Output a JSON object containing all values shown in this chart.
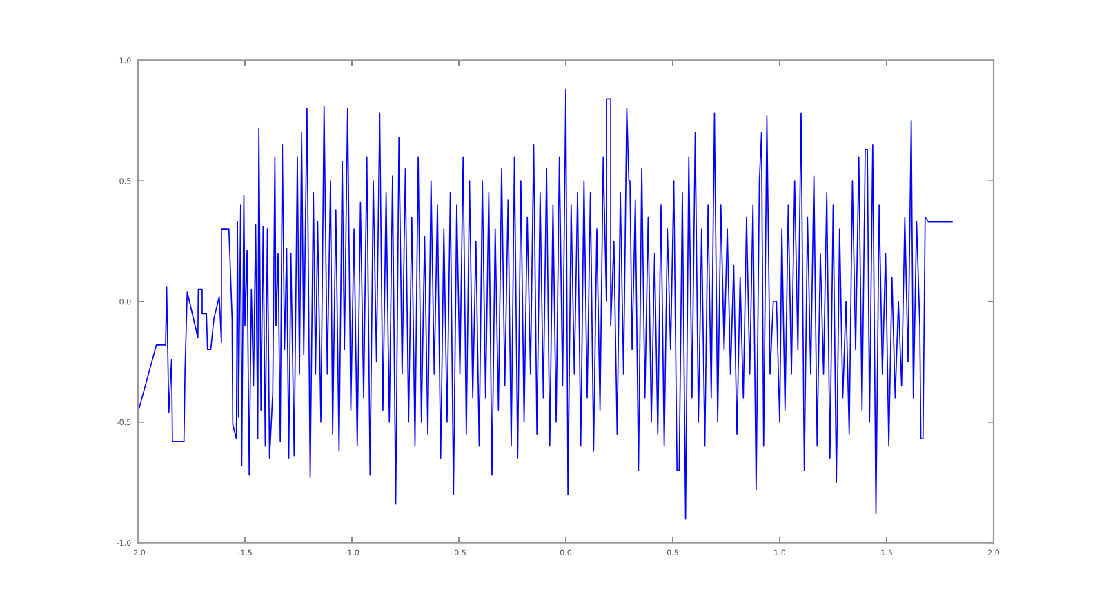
{
  "chart_data": {
    "type": "line",
    "xlim": [
      -2.0,
      2.0
    ],
    "ylim": [
      -1.0,
      1.0
    ],
    "xticks": [
      {
        "value": -2.0,
        "label": "-2.0"
      },
      {
        "value": -1.5,
        "label": "-1.5"
      },
      {
        "value": -1.0,
        "label": "-1.0"
      },
      {
        "value": -0.5,
        "label": "-0.5"
      },
      {
        "value": 0.0,
        "label": "0.0"
      },
      {
        "value": 0.5,
        "label": "0.5"
      },
      {
        "value": 1.0,
        "label": "1.0"
      },
      {
        "value": 1.5,
        "label": "1.5"
      },
      {
        "value": 2.0,
        "label": "2.0"
      }
    ],
    "yticks": [
      {
        "value": -1.0,
        "label": "-1.0"
      },
      {
        "value": -0.5,
        "label": "-0.5"
      },
      {
        "value": 0.0,
        "label": "0.0"
      },
      {
        "value": 0.5,
        "label": "0.5"
      },
      {
        "value": 1.0,
        "label": "1.0"
      }
    ],
    "grid": false,
    "legend": false,
    "marker": "none",
    "line_style": "solid",
    "series": [
      {
        "color": "#0000ff",
        "x": [
          -2.0,
          -1.914,
          -1.871,
          -1.866,
          -1.856,
          -1.843,
          -1.839,
          -1.785,
          -1.78,
          -1.77,
          -1.72,
          -1.718,
          -1.7,
          -1.7,
          -1.68,
          -1.675,
          -1.66,
          -1.645,
          -1.62,
          -1.61,
          -1.61,
          -1.575,
          -1.56,
          -1.557,
          -1.54,
          -1.535,
          -1.53,
          -1.52,
          -1.515,
          -1.505,
          -1.5,
          -1.49,
          -1.48,
          -1.47,
          -1.46,
          -1.45,
          -1.44,
          -1.435,
          -1.425,
          -1.415,
          -1.405,
          -1.395,
          -1.385,
          -1.37,
          -1.36,
          -1.355,
          -1.345,
          -1.335,
          -1.325,
          -1.315,
          -1.305,
          -1.295,
          -1.285,
          -1.27,
          -1.255,
          -1.245,
          -1.235,
          -1.225,
          -1.21,
          -1.195,
          -1.18,
          -1.17,
          -1.16,
          -1.145,
          -1.13,
          -1.115,
          -1.1,
          -1.09,
          -1.075,
          -1.06,
          -1.045,
          -1.035,
          -1.02,
          -1.005,
          -0.99,
          -0.975,
          -0.96,
          -0.945,
          -0.93,
          -0.915,
          -0.9,
          -0.885,
          -0.87,
          -0.855,
          -0.84,
          -0.825,
          -0.81,
          -0.795,
          -0.78,
          -0.765,
          -0.75,
          -0.735,
          -0.72,
          -0.705,
          -0.69,
          -0.675,
          -0.66,
          -0.645,
          -0.63,
          -0.615,
          -0.6,
          -0.585,
          -0.57,
          -0.555,
          -0.54,
          -0.525,
          -0.51,
          -0.495,
          -0.48,
          -0.465,
          -0.45,
          -0.435,
          -0.42,
          -0.405,
          -0.39,
          -0.375,
          -0.36,
          -0.345,
          -0.33,
          -0.315,
          -0.3,
          -0.285,
          -0.27,
          -0.255,
          -0.24,
          -0.225,
          -0.21,
          -0.195,
          -0.18,
          -0.165,
          -0.15,
          -0.135,
          -0.12,
          -0.105,
          -0.09,
          -0.075,
          -0.06,
          -0.045,
          -0.03,
          -0.015,
          0.0,
          0.01,
          0.025,
          0.04,
          0.055,
          0.07,
          0.085,
          0.1,
          0.115,
          0.13,
          0.145,
          0.16,
          0.175,
          0.19,
          0.19,
          0.21,
          0.21,
          0.225,
          0.24,
          0.255,
          0.27,
          0.285,
          0.295,
          0.3,
          0.31,
          0.325,
          0.34,
          0.355,
          0.37,
          0.385,
          0.4,
          0.415,
          0.43,
          0.445,
          0.46,
          0.475,
          0.49,
          0.505,
          0.52,
          0.53,
          0.545,
          0.56,
          0.575,
          0.59,
          0.605,
          0.62,
          0.635,
          0.65,
          0.665,
          0.68,
          0.695,
          0.71,
          0.725,
          0.74,
          0.755,
          0.77,
          0.785,
          0.8,
          0.815,
          0.83,
          0.845,
          0.86,
          0.875,
          0.89,
          0.905,
          0.915,
          0.925,
          0.94,
          0.955,
          0.97,
          0.985,
          1.0,
          1.01,
          1.025,
          1.04,
          1.055,
          1.07,
          1.085,
          1.1,
          1.115,
          1.13,
          1.145,
          1.16,
          1.175,
          1.19,
          1.205,
          1.22,
          1.235,
          1.25,
          1.265,
          1.28,
          1.295,
          1.31,
          1.325,
          1.34,
          1.355,
          1.37,
          1.385,
          1.4,
          1.41,
          1.42,
          1.435,
          1.45,
          1.465,
          1.48,
          1.495,
          1.51,
          1.525,
          1.54,
          1.555,
          1.57,
          1.585,
          1.6,
          1.615,
          1.625,
          1.64,
          1.655,
          1.66,
          1.67,
          1.68,
          1.695,
          1.806
        ],
        "values": [
          -0.46,
          -0.18,
          -0.18,
          0.06,
          -0.46,
          -0.24,
          -0.58,
          -0.58,
          -0.28,
          0.04,
          -0.15,
          0.05,
          0.05,
          -0.05,
          -0.05,
          -0.2,
          -0.2,
          -0.07,
          0.02,
          -0.17,
          0.3,
          0.3,
          -0.07,
          -0.51,
          -0.57,
          0.33,
          -0.48,
          0.4,
          -0.68,
          0.44,
          -0.1,
          0.21,
          -0.72,
          0.05,
          -0.35,
          0.32,
          -0.57,
          0.72,
          -0.45,
          0.31,
          -0.6,
          0.3,
          -0.65,
          -0.38,
          0.6,
          -0.1,
          0.2,
          -0.58,
          0.65,
          -0.2,
          0.22,
          -0.65,
          0.2,
          -0.64,
          0.6,
          -0.3,
          0.7,
          -0.22,
          0.8,
          -0.73,
          0.45,
          -0.3,
          0.33,
          -0.5,
          0.81,
          -0.3,
          0.5,
          -0.55,
          0.38,
          -0.62,
          0.58,
          -0.2,
          0.8,
          -0.45,
          0.3,
          -0.6,
          0.41,
          -0.4,
          0.6,
          -0.72,
          0.5,
          -0.25,
          0.78,
          -0.45,
          0.45,
          -0.5,
          0.52,
          -0.84,
          0.68,
          -0.3,
          0.55,
          -0.5,
          0.35,
          -0.6,
          0.6,
          -0.5,
          0.27,
          -0.55,
          0.5,
          -0.3,
          0.4,
          -0.65,
          0.3,
          -0.5,
          0.45,
          -0.8,
          0.4,
          -0.3,
          0.6,
          -0.55,
          0.5,
          -0.4,
          0.25,
          -0.6,
          0.5,
          -0.4,
          0.45,
          -0.72,
          0.3,
          -0.45,
          0.55,
          -0.35,
          0.42,
          -0.6,
          0.6,
          -0.65,
          0.5,
          -0.5,
          0.35,
          -0.3,
          0.65,
          -0.55,
          0.45,
          -0.4,
          0.55,
          -0.6,
          0.4,
          -0.5,
          0.6,
          -0.35,
          0.88,
          -0.8,
          0.4,
          -0.3,
          0.45,
          -0.6,
          0.5,
          -0.4,
          0.45,
          -0.62,
          0.3,
          -0.45,
          0.6,
          0.0,
          0.84,
          0.84,
          -0.1,
          0.25,
          -0.55,
          0.45,
          -0.3,
          0.8,
          0.5,
          0.5,
          -0.2,
          0.42,
          -0.7,
          0.55,
          -0.4,
          0.35,
          -0.5,
          0.2,
          -0.55,
          0.4,
          -0.6,
          0.3,
          -0.2,
          0.5,
          -0.7,
          -0.7,
          0.45,
          -0.9,
          0.6,
          -0.4,
          0.7,
          -0.5,
          0.3,
          -0.6,
          0.4,
          -0.4,
          0.78,
          -0.5,
          0.4,
          -0.2,
          0.3,
          -0.3,
          0.15,
          -0.55,
          0.1,
          -0.4,
          0.35,
          -0.3,
          0.4,
          -0.78,
          0.5,
          0.7,
          -0.6,
          0.77,
          -0.3,
          0.0,
          0.0,
          -0.5,
          0.3,
          -0.45,
          0.4,
          -0.3,
          0.5,
          -0.2,
          0.78,
          -0.7,
          0.35,
          -0.3,
          0.52,
          -0.6,
          0.2,
          -0.3,
          0.45,
          -0.65,
          0.4,
          -0.75,
          0.3,
          -0.4,
          0.0,
          -0.55,
          0.5,
          -0.2,
          0.6,
          -0.45,
          0.63,
          0.63,
          -0.5,
          0.65,
          -0.88,
          0.4,
          -0.3,
          0.2,
          -0.6,
          0.1,
          -0.4,
          0.0,
          -0.35,
          0.35,
          -0.25,
          0.75,
          -0.4,
          0.33,
          -0.1,
          -0.57,
          -0.57,
          0.35,
          0.33,
          0.33
        ]
      }
    ]
  }
}
